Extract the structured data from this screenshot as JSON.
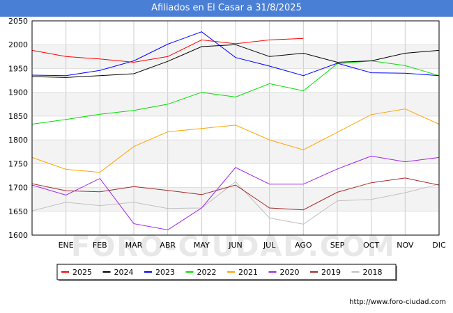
{
  "title": "Afiliados en El Casar a 31/8/2025",
  "footer_url": "http://www.foro-ciudad.com",
  "watermark": "FORO-CIUDAD.COM",
  "chart_data": {
    "type": "line",
    "title": "Afiliados en El Casar a 31/8/2025",
    "xlabel": "",
    "ylabel": "",
    "categories": [
      "",
      "ENE",
      "FEB",
      "MAR",
      "ABR",
      "MAY",
      "JUN",
      "JUL",
      "AGO",
      "SEP",
      "OCT",
      "NOV",
      "DIC"
    ],
    "ylim": [
      1600,
      2050
    ],
    "yticks": [
      1600,
      1650,
      1700,
      1750,
      1800,
      1850,
      1900,
      1950,
      2000,
      2050
    ],
    "grid": true,
    "legend_position": "bottom",
    "series": [
      {
        "name": "2025",
        "color": "#ff0000",
        "values": [
          1988,
          1975,
          1970,
          1963,
          1975,
          2010,
          2002,
          2010,
          2013,
          null,
          null,
          null,
          null
        ]
      },
      {
        "name": "2024",
        "color": "#000000",
        "values": [
          1933,
          1931,
          1935,
          1939,
          1965,
          1996,
          2000,
          1975,
          1982,
          1963,
          1966,
          1982,
          1988
        ]
      },
      {
        "name": "2023",
        "color": "#0000ff",
        "values": [
          1936,
          1935,
          1946,
          1966,
          2001,
          2027,
          1973,
          1955,
          1935,
          1961,
          1941,
          1940,
          1935
        ]
      },
      {
        "name": "2022",
        "color": "#00e000",
        "values": [
          1833,
          1843,
          1854,
          1862,
          1875,
          1900,
          1890,
          1918,
          1903,
          1960,
          1966,
          1956,
          1935
        ]
      },
      {
        "name": "2021",
        "color": "#ffa500",
        "values": [
          1763,
          1738,
          1732,
          1786,
          1817,
          1824,
          1831,
          1800,
          1779,
          1816,
          1853,
          1865,
          1833
        ]
      },
      {
        "name": "2020",
        "color": "#a020f0",
        "values": [
          1705,
          1684,
          1719,
          1624,
          1611,
          1657,
          1742,
          1707,
          1707,
          1739,
          1766,
          1754,
          1763
        ]
      },
      {
        "name": "2019",
        "color": "#a52a2a",
        "values": [
          1708,
          1693,
          1691,
          1702,
          1694,
          1685,
          1705,
          1657,
          1653,
          1690,
          1710,
          1720,
          1705
        ]
      },
      {
        "name": "2018",
        "color": "#c0c0c0",
        "values": [
          1651,
          1669,
          1662,
          1669,
          1656,
          1657,
          1712,
          1636,
          1623,
          1672,
          1675,
          1689,
          1707
        ]
      }
    ]
  }
}
